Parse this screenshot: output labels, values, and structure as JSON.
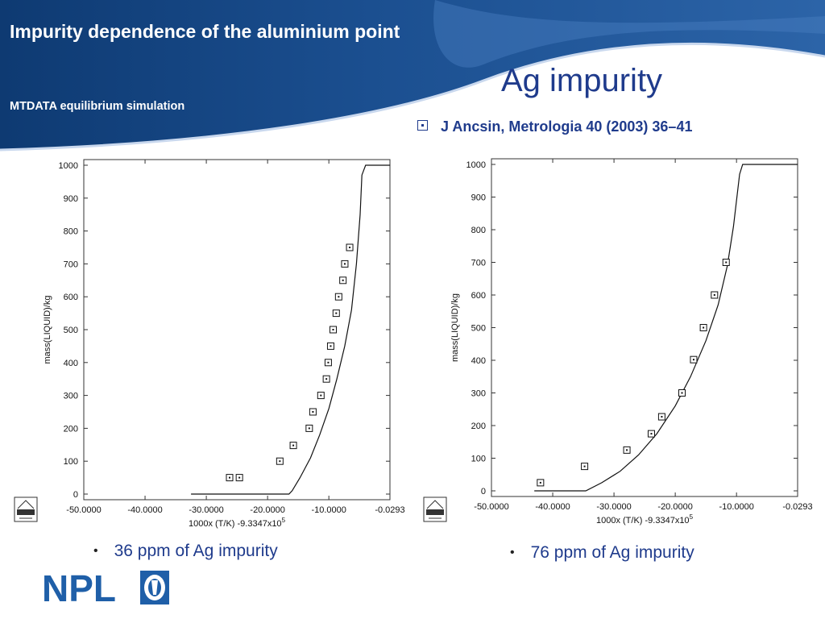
{
  "header": {
    "title": "Impurity dependence of the aluminium point",
    "subtitle": "MTDATA equilibrium simulation"
  },
  "main_title": "Ag impurity",
  "citation": "J Ancsin, Metrologia 40 (2003) 36–41",
  "bullets": [
    "36 ppm of Ag impurity",
    "76 ppm of Ag impurity"
  ],
  "logo": {
    "text": "NPL",
    "color": "#1f5fa8"
  },
  "colors": {
    "banner_dark": "#0e3a72",
    "banner_light": "#2c64a8",
    "title_blue": "#1f3b8c"
  },
  "chart_data": [
    {
      "type": "scatter",
      "xlabel": "1000x (T/K) -9.3347x10",
      "xlabel_sup": "5",
      "ylabel": "mass(LIQUID)/kg",
      "xlim": [
        -50.0,
        -0.0293
      ],
      "ylim": [
        0,
        1000
      ],
      "xticks": [
        -50.0,
        -40.0,
        -30.0,
        -20.0,
        -10.0,
        -0.0293
      ],
      "xtick_labels": [
        "-50.0000",
        "-40.0000",
        "-30.0000",
        "-20.0000",
        "-10.0000",
        "-0.0293"
      ],
      "yticks": [
        0,
        100,
        200,
        300,
        400,
        500,
        600,
        700,
        800,
        900,
        1000
      ],
      "grid": false,
      "series": [
        {
          "kind": "line",
          "x": [
            -32.5,
            -16.5,
            -16.0,
            -14.7,
            -13.0,
            -11.5,
            -10.0,
            -8.7,
            -7.4,
            -6.3,
            -5.5,
            -4.9,
            -4.6,
            -4.0,
            0.0
          ],
          "y": [
            0,
            0,
            10,
            50,
            110,
            180,
            260,
            350,
            450,
            560,
            700,
            850,
            970,
            1000,
            1000
          ]
        },
        {
          "kind": "markers",
          "x": [
            -26.2,
            -24.6,
            -18.0,
            -15.8,
            -13.2,
            -12.6,
            -11.3,
            -10.4,
            -10.1,
            -9.7,
            -9.3,
            -8.8,
            -8.4,
            -7.7,
            -7.4,
            -6.6
          ],
          "y": [
            50,
            50,
            100,
            148,
            200,
            250,
            300,
            350,
            400,
            450,
            500,
            550,
            600,
            650,
            700,
            750
          ]
        }
      ]
    },
    {
      "type": "scatter",
      "xlabel": "1000x (T/K) -9.3347x10",
      "xlabel_sup": "5",
      "ylabel": "mass(LIQUID)/kg",
      "xlim": [
        -50.0,
        -0.0293
      ],
      "ylim": [
        0,
        1000
      ],
      "xticks": [
        -50.0,
        -40.0,
        -30.0,
        -20.0,
        -10.0,
        -0.0293
      ],
      "xtick_labels": [
        "-50.0000",
        "-40.0000",
        "-30.0000",
        "-20.0000",
        "-10.0000",
        "-0.0293"
      ],
      "yticks": [
        0,
        100,
        200,
        300,
        400,
        500,
        600,
        700,
        800,
        900,
        1000
      ],
      "grid": false,
      "series": [
        {
          "kind": "line",
          "x": [
            -43.0,
            -34.6,
            -32.0,
            -29.0,
            -26.0,
            -23.0,
            -20.0,
            -17.5,
            -15.0,
            -13.0,
            -11.5,
            -10.5,
            -9.5,
            -9.0,
            0.0
          ],
          "y": [
            0,
            0,
            25,
            60,
            110,
            175,
            260,
            350,
            460,
            570,
            690,
            810,
            970,
            1000,
            1000
          ]
        },
        {
          "kind": "markers",
          "x": [
            -42.0,
            -34.8,
            -27.9,
            -23.9,
            -22.2,
            -18.9,
            -15.4,
            -17.0,
            -13.6,
            -11.7
          ],
          "y": [
            25,
            75,
            125,
            175,
            227,
            300,
            500,
            402,
            600,
            700
          ]
        }
      ]
    }
  ]
}
